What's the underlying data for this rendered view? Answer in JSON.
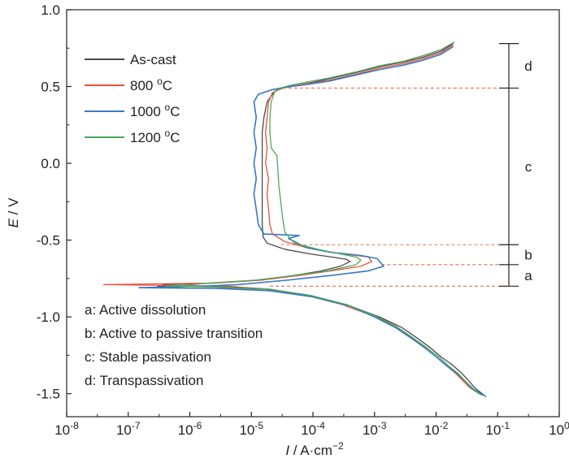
{
  "chart_data": {
    "type": "line",
    "xscale": "log",
    "xlabel_var": "I",
    "xlabel_unit": " / A·cm",
    "xlabel_exp": "−2",
    "ylabel_var": "E",
    "ylabel_unit": " / V",
    "xlim": [
      1e-08,
      1
    ],
    "ylim": [
      -1.65,
      1.0
    ],
    "x_ticks": [
      {
        "value": 1e-08,
        "base": "10",
        "exp": "-8"
      },
      {
        "value": 1e-07,
        "base": "10",
        "exp": "-7"
      },
      {
        "value": 1e-06,
        "base": "10",
        "exp": "-6"
      },
      {
        "value": 1e-05,
        "base": "10",
        "exp": "-5"
      },
      {
        "value": 0.0001,
        "base": "10",
        "exp": "-4"
      },
      {
        "value": 0.001,
        "base": "10",
        "exp": "-3"
      },
      {
        "value": 0.01,
        "base": "10",
        "exp": "-2"
      },
      {
        "value": 0.1,
        "base": "10",
        "exp": "-1"
      },
      {
        "value": 1,
        "base": "10",
        "exp": "0"
      }
    ],
    "y_ticks": [
      {
        "value": 1.0,
        "label": "1.0"
      },
      {
        "value": 0.5,
        "label": "0.5"
      },
      {
        "value": 0.0,
        "label": "0.0"
      },
      {
        "value": -0.5,
        "label": "-0.5"
      },
      {
        "value": -1.0,
        "label": "-1.0"
      },
      {
        "value": -1.5,
        "label": "-1.5"
      }
    ],
    "legend_position": "top-left",
    "legend": [
      {
        "label": "As-cast",
        "sup": ""
      },
      {
        "label": "800 ",
        "sup": "o",
        "suffix": "C"
      },
      {
        "label": "1000 ",
        "sup": "o",
        "suffix": "C"
      },
      {
        "label": "1200 ",
        "sup": "o",
        "suffix": "C"
      }
    ],
    "series": [
      {
        "name": "As-cast",
        "color": "#4a4a4a",
        "points": [
          [
            0.019,
            0.78
          ],
          [
            0.012,
            0.73
          ],
          [
            0.006,
            0.69
          ],
          [
            0.003,
            0.66
          ],
          [
            0.0012,
            0.63
          ],
          [
            0.0005,
            0.59
          ],
          [
            0.00018,
            0.55
          ],
          [
            8e-05,
            0.52
          ],
          [
            5e-05,
            0.505
          ],
          [
            3.3e-05,
            0.49
          ],
          [
            2.4e-05,
            0.47
          ],
          [
            1.8e-05,
            0.4
          ],
          [
            1.6e-05,
            0.3
          ],
          [
            1.5e-05,
            0.2
          ],
          [
            1.5e-05,
            0.1
          ],
          [
            1.5e-05,
            0.0
          ],
          [
            1.5e-05,
            -0.1
          ],
          [
            1.5e-05,
            -0.2
          ],
          [
            1.5e-05,
            -0.3
          ],
          [
            1.5e-05,
            -0.4
          ],
          [
            1.55e-05,
            -0.48
          ],
          [
            1.8e-05,
            -0.52
          ],
          [
            3.5e-05,
            -0.56
          ],
          [
            9e-05,
            -0.59
          ],
          [
            0.0002,
            -0.61
          ],
          [
            0.00035,
            -0.625
          ],
          [
            0.0004,
            -0.64
          ],
          [
            0.00028,
            -0.67
          ],
          [
            0.00014,
            -0.7
          ],
          [
            5e-05,
            -0.73
          ],
          [
            1.5e-05,
            -0.76
          ],
          [
            2.5e-06,
            -0.78
          ],
          [
            4e-07,
            -0.79
          ],
          [
            3e-07,
            -0.8
          ],
          [
            2.5e-06,
            -0.805
          ],
          [
            1.8e-05,
            -0.82
          ],
          [
            9e-05,
            -0.86
          ],
          [
            0.00035,
            -0.92
          ],
          [
            0.0012,
            -1.0
          ],
          [
            0.0028,
            -1.07
          ],
          [
            0.005,
            -1.14
          ],
          [
            0.008,
            -1.2
          ],
          [
            0.012,
            -1.26
          ],
          [
            0.018,
            -1.31
          ],
          [
            0.025,
            -1.36
          ],
          [
            0.033,
            -1.41
          ],
          [
            0.042,
            -1.46
          ],
          [
            0.06,
            -1.51
          ]
        ]
      },
      {
        "name": "800 °C",
        "color": "#e8503a",
        "points": [
          [
            0.019,
            0.77
          ],
          [
            0.012,
            0.72
          ],
          [
            0.006,
            0.68
          ],
          [
            0.003,
            0.65
          ],
          [
            0.0012,
            0.62
          ],
          [
            0.0005,
            0.58
          ],
          [
            0.00018,
            0.54
          ],
          [
            7e-05,
            0.515
          ],
          [
            4e-05,
            0.5
          ],
          [
            3e-05,
            0.485
          ],
          [
            2.2e-05,
            0.46
          ],
          [
            1.9e-05,
            0.4
          ],
          [
            1.8e-05,
            0.3
          ],
          [
            1.7e-05,
            0.2
          ],
          [
            1.8e-05,
            0.1
          ],
          [
            1.7e-05,
            0.0
          ],
          [
            1.9e-05,
            -0.1
          ],
          [
            1.8e-05,
            -0.2
          ],
          [
            1.9e-05,
            -0.3
          ],
          [
            2e-05,
            -0.4
          ],
          [
            2.2e-05,
            -0.46
          ],
          [
            3.5e-05,
            -0.51
          ],
          [
            8e-05,
            -0.55
          ],
          [
            0.0002,
            -0.58
          ],
          [
            0.0005,
            -0.6
          ],
          [
            0.0008,
            -0.61
          ],
          [
            0.0009,
            -0.64
          ],
          [
            0.0006,
            -0.67
          ],
          [
            0.0002,
            -0.7
          ],
          [
            6e-05,
            -0.73
          ],
          [
            1.5e-05,
            -0.76
          ],
          [
            2.5e-06,
            -0.78
          ],
          [
            4e-08,
            -0.79
          ],
          [
            4e-07,
            -0.795
          ],
          [
            4e-06,
            -0.8
          ],
          [
            2e-05,
            -0.82
          ],
          [
            8e-05,
            -0.86
          ],
          [
            0.0003,
            -0.92
          ],
          [
            0.0009,
            -0.99
          ],
          [
            0.0022,
            -1.06
          ],
          [
            0.0038,
            -1.13
          ],
          [
            0.0065,
            -1.2
          ],
          [
            0.01,
            -1.26
          ],
          [
            0.015,
            -1.32
          ],
          [
            0.021,
            -1.37
          ],
          [
            0.028,
            -1.42
          ],
          [
            0.035,
            -1.46
          ],
          [
            0.05,
            -1.5
          ]
        ]
      },
      {
        "name": "1000 °C",
        "color": "#3a78c2",
        "points": [
          [
            0.019,
            0.76
          ],
          [
            0.012,
            0.71
          ],
          [
            0.006,
            0.67
          ],
          [
            0.003,
            0.64
          ],
          [
            0.0012,
            0.61
          ],
          [
            0.0005,
            0.575
          ],
          [
            0.00018,
            0.535
          ],
          [
            7e-05,
            0.51
          ],
          [
            3.5e-05,
            0.495
          ],
          [
            2.2e-05,
            0.48
          ],
          [
            1.3e-05,
            0.45
          ],
          [
            1.1e-05,
            0.4
          ],
          [
            1.2e-05,
            0.3
          ],
          [
            1.1e-05,
            0.2
          ],
          [
            1.2e-05,
            0.1
          ],
          [
            1.1e-05,
            0.0
          ],
          [
            1.2e-05,
            -0.1
          ],
          [
            1.1e-05,
            -0.2
          ],
          [
            1.2e-05,
            -0.3
          ],
          [
            1.3e-05,
            -0.4
          ],
          [
            1.6e-05,
            -0.46
          ],
          [
            6e-05,
            -0.47
          ],
          [
            4e-05,
            -0.49
          ],
          [
            8e-05,
            -0.55
          ],
          [
            0.0002,
            -0.58
          ],
          [
            0.0006,
            -0.6
          ],
          [
            0.0011,
            -0.62
          ],
          [
            0.0014,
            -0.67
          ],
          [
            0.0008,
            -0.7
          ],
          [
            0.0002,
            -0.73
          ],
          [
            4e-05,
            -0.76
          ],
          [
            6e-06,
            -0.79
          ],
          [
            1.5e-06,
            -0.8
          ],
          [
            1.5e-07,
            -0.81
          ],
          [
            3e-06,
            -0.815
          ],
          [
            2e-05,
            -0.83
          ],
          [
            0.0001,
            -0.87
          ],
          [
            0.0004,
            -0.93
          ],
          [
            0.001,
            -1.0
          ],
          [
            0.0022,
            -1.07
          ],
          [
            0.004,
            -1.14
          ],
          [
            0.0065,
            -1.2
          ],
          [
            0.01,
            -1.26
          ],
          [
            0.015,
            -1.32
          ],
          [
            0.022,
            -1.37
          ],
          [
            0.03,
            -1.42
          ],
          [
            0.04,
            -1.47
          ],
          [
            0.065,
            -1.52
          ]
        ]
      },
      {
        "name": "1200 °C",
        "color": "#4aa85a",
        "points": [
          [
            0.02,
            0.79
          ],
          [
            0.012,
            0.74
          ],
          [
            0.006,
            0.7
          ],
          [
            0.003,
            0.665
          ],
          [
            0.0012,
            0.635
          ],
          [
            0.0005,
            0.595
          ],
          [
            0.00018,
            0.555
          ],
          [
            7e-05,
            0.525
          ],
          [
            4e-05,
            0.505
          ],
          [
            3e-05,
            0.49
          ],
          [
            2.4e-05,
            0.47
          ],
          [
            2.1e-05,
            0.4
          ],
          [
            2e-05,
            0.3
          ],
          [
            2e-05,
            0.2
          ],
          [
            2.1e-05,
            0.1
          ],
          [
            2.6e-05,
            0.05
          ],
          [
            2.7e-05,
            -0.05
          ],
          [
            2.8e-05,
            -0.15
          ],
          [
            3e-05,
            -0.25
          ],
          [
            3.2e-05,
            -0.35
          ],
          [
            3.5e-05,
            -0.45
          ],
          [
            5e-05,
            -0.52
          ],
          [
            0.00012,
            -0.56
          ],
          [
            0.00028,
            -0.59
          ],
          [
            0.0005,
            -0.61
          ],
          [
            0.0006,
            -0.63
          ],
          [
            0.0005,
            -0.66
          ],
          [
            0.00018,
            -0.7
          ],
          [
            5e-05,
            -0.73
          ],
          [
            1.2e-05,
            -0.76
          ],
          [
            2e-06,
            -0.78
          ],
          [
            8e-07,
            -0.795
          ],
          [
            4e-07,
            -0.8
          ],
          [
            4e-06,
            -0.805
          ],
          [
            2e-05,
            -0.82
          ],
          [
            9e-05,
            -0.86
          ],
          [
            0.00035,
            -0.92
          ],
          [
            0.001,
            -0.99
          ],
          [
            0.0022,
            -1.06
          ],
          [
            0.004,
            -1.13
          ],
          [
            0.007,
            -1.2
          ],
          [
            0.011,
            -1.26
          ],
          [
            0.016,
            -1.32
          ],
          [
            0.023,
            -1.37
          ],
          [
            0.03,
            -1.42
          ],
          [
            0.038,
            -1.47
          ],
          [
            0.055,
            -1.51
          ]
        ]
      }
    ],
    "reference_lines": [
      0.49,
      -0.53,
      -0.66,
      -0.8
    ],
    "stages": {
      "top": 0.78,
      "bounds": [
        0.78,
        0.49,
        -0.53,
        -0.66,
        -0.8
      ],
      "labels": [
        "d",
        "c",
        "b",
        "a"
      ]
    },
    "notes": [
      "a: Active dissolution",
      "b: Active to passive transition",
      "c: Stable passivation",
      "d: Transpassivation"
    ]
  }
}
